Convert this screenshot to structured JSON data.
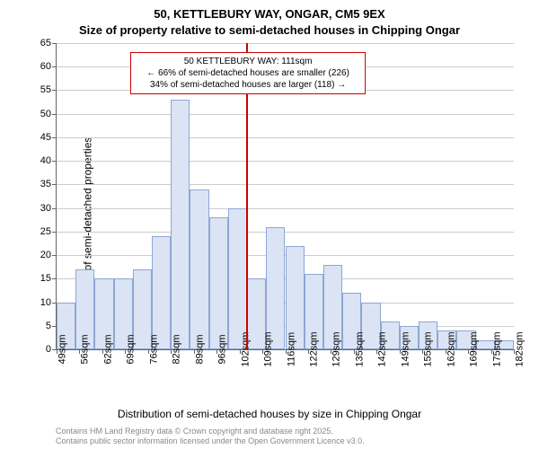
{
  "chart": {
    "type": "histogram",
    "title_main": "50, KETTLEBURY WAY, ONGAR, CM5 9EX",
    "title_sub": "Size of property relative to semi-detached houses in Chipping Ongar",
    "ylabel": "Number of semi-detached properties",
    "xlabel": "Distribution of semi-detached houses by size in Chipping Ongar",
    "background_color": "#ffffff",
    "bar_fill": "#dbe4f4",
    "bar_border": "#8da6d6",
    "grid_color": "#cccccc",
    "axis_color": "#666666",
    "marker_color": "#cc0000",
    "annotation_border": "#cc0000",
    "y": {
      "min": 0,
      "max": 65,
      "step": 5,
      "ticks": [
        0,
        5,
        10,
        15,
        20,
        25,
        30,
        35,
        40,
        45,
        50,
        55,
        60,
        65
      ]
    },
    "x": {
      "tick_labels": [
        "49sqm",
        "56sqm",
        "62sqm",
        "69sqm",
        "76sqm",
        "82sqm",
        "89sqm",
        "96sqm",
        "102sqm",
        "109sqm",
        "116sqm",
        "122sqm",
        "129sqm",
        "135sqm",
        "142sqm",
        "149sqm",
        "155sqm",
        "162sqm",
        "169sqm",
        "175sqm",
        "182sqm"
      ]
    },
    "bars": [
      10,
      17,
      15,
      15,
      17,
      24,
      53,
      34,
      28,
      30,
      15,
      26,
      22,
      16,
      18,
      12,
      10,
      6,
      5,
      6,
      4,
      4,
      2,
      2
    ],
    "marker_bar_index": 9,
    "annotation": {
      "line1": "50 KETTLEBURY WAY: 111sqm",
      "line2": "← 66% of semi-detached houses are smaller (226)",
      "line3": "34% of semi-detached houses are larger (118) →"
    },
    "attribution": {
      "line1": "Contains HM Land Registry data © Crown copyright and database right 2025.",
      "line2": "Contains public sector information licensed under the Open Government Licence v3.0."
    },
    "title_fontsize": 13,
    "label_fontsize": 12,
    "tick_fontsize": 11,
    "annotation_fontsize": 10,
    "attribution_fontsize": 9,
    "attribution_color": "#888888"
  }
}
